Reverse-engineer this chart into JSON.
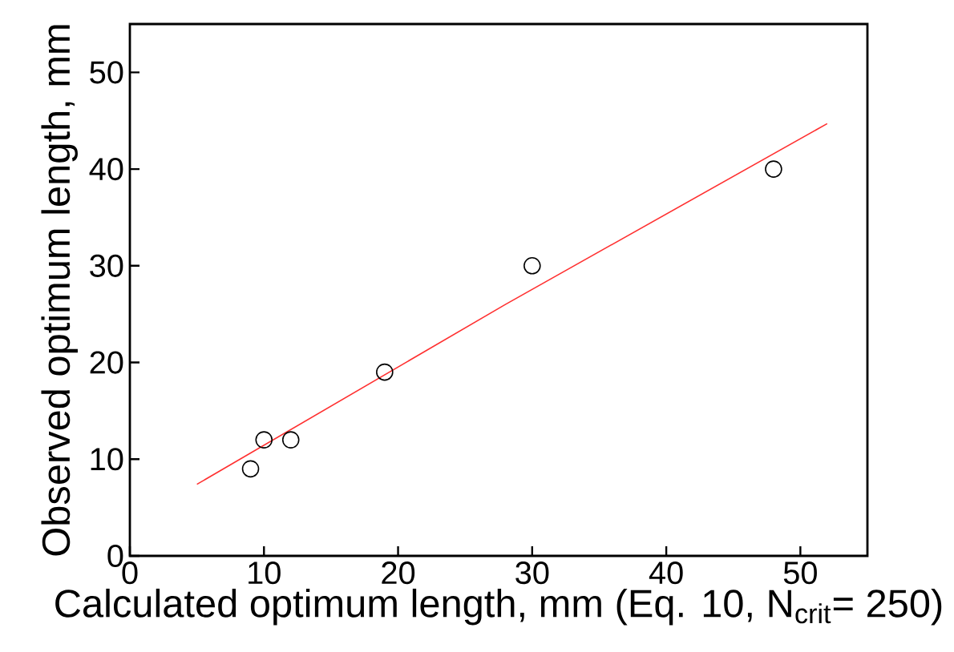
{
  "chart_data": {
    "type": "scatter",
    "xlabel": "Calculated optimum length, mm (Eq. 10, N$_{crit}$= 250)",
    "ylabel": "Observed optimum length, mm",
    "xlim": [
      0,
      55
    ],
    "ylim": [
      0,
      55
    ],
    "xticks": [
      0,
      10,
      20,
      30,
      40,
      50
    ],
    "yticks": [
      0,
      10,
      20,
      30,
      40,
      50
    ],
    "series": [
      {
        "color": "#000000",
        "marker": "circle",
        "x": [
          9,
          10,
          12,
          19,
          30,
          48
        ],
        "values": [
          9,
          12,
          12,
          19,
          30,
          40
        ]
      },
      {
        "type": "line",
        "color": "#ff3030",
        "marker": "none",
        "line_style": "solid",
        "x": [
          5,
          28,
          52
        ],
        "values": [
          7.4,
          26,
          44.7
        ]
      }
    ]
  }
}
